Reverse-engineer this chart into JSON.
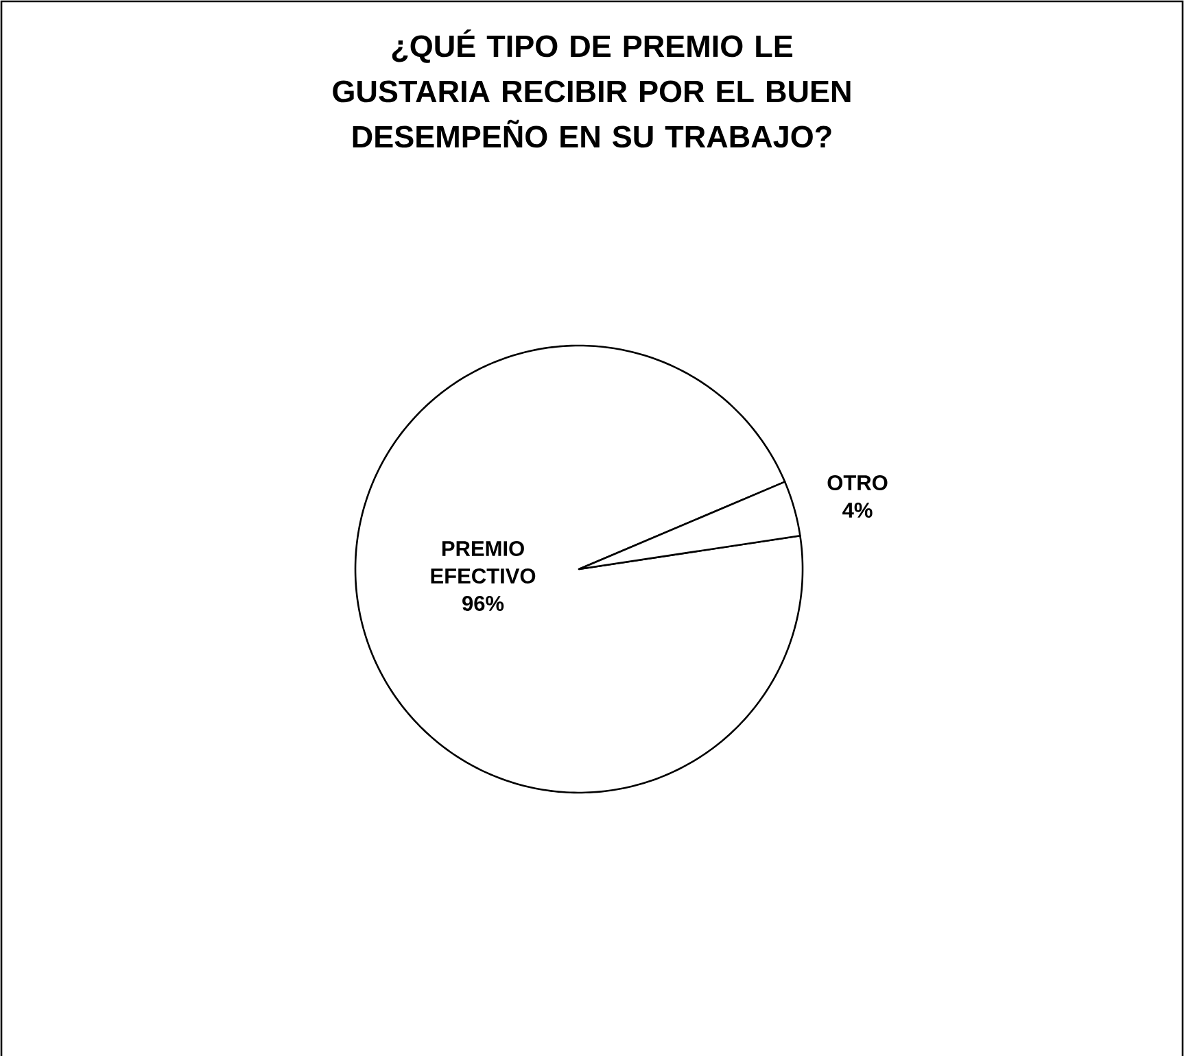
{
  "chart_data": {
    "type": "pie",
    "title": "¿QUÉ TIPO DE PREMIO LE GUSTARIA RECIBIR POR EL BUEN DESEMPEÑO EN SU TRABAJO?",
    "categories": [
      "PREMIO EFECTIVO",
      "OTRO"
    ],
    "values": [
      96,
      4
    ],
    "value_labels": [
      "96%",
      "4%"
    ],
    "colors": [
      "#ffffff",
      "#ffffff"
    ]
  }
}
